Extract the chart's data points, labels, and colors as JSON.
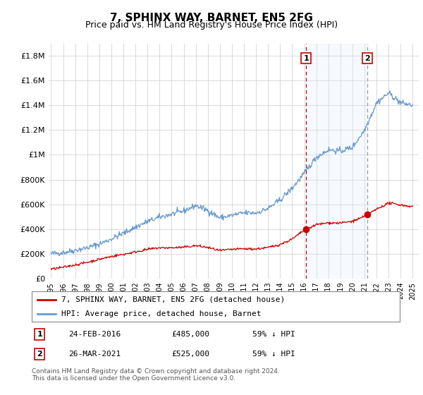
{
  "title": "7, SPHINX WAY, BARNET, EN5 2FG",
  "subtitle": "Price paid vs. HM Land Registry's House Price Index (HPI)",
  "red_label": "7, SPHINX WAY, BARNET, EN5 2FG (detached house)",
  "blue_label": "HPI: Average price, detached house, Barnet",
  "footnote": "Contains HM Land Registry data © Crown copyright and database right 2024.\nThis data is licensed under the Open Government Licence v3.0.",
  "transaction1": {
    "label": "1",
    "date": "24-FEB-2016",
    "price": "£485,000",
    "hpi": "59% ↓ HPI",
    "year": 2016.15
  },
  "transaction2": {
    "label": "2",
    "date": "26-MAR-2021",
    "price": "£525,000",
    "hpi": "59% ↓ HPI",
    "year": 2021.23
  },
  "ylim": [
    0,
    1900000
  ],
  "xlim": [
    1994.8,
    2025.5
  ],
  "yticks": [
    0,
    200000,
    400000,
    600000,
    800000,
    1000000,
    1200000,
    1400000,
    1600000,
    1800000
  ],
  "ytick_labels": [
    "£0",
    "£200K",
    "£400K",
    "£600K",
    "£800K",
    "£1M",
    "£1.2M",
    "£1.4M",
    "£1.6M",
    "£1.8M"
  ],
  "background_color": "#ffffff",
  "plot_bg_color": "#ffffff",
  "grid_color": "#cccccc",
  "red_color": "#cc0000",
  "blue_color": "#6699cc",
  "vline1_color": "#cc0000",
  "vline1_style": "--",
  "vline2_color": "#999999",
  "vline2_style": "--",
  "shade_color": "#ddeeff",
  "marker_color": "#cc0000",
  "title_fontsize": 11,
  "subtitle_fontsize": 9,
  "tick_fontsize": 8,
  "legend_fontsize": 8,
  "table_fontsize": 8,
  "footnote_fontsize": 6.5
}
